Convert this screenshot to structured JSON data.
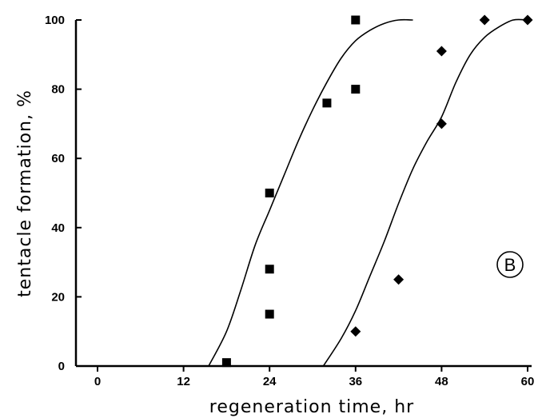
{
  "chart_data": {
    "type": "scatter",
    "xlabel": "regeneration time, hr",
    "ylabel": "tentacle formation, %",
    "xlim": [
      0,
      60
    ],
    "ylim": [
      0,
      100
    ],
    "x_ticks": [
      0,
      12,
      24,
      36,
      48,
      60
    ],
    "y_ticks": [
      0,
      20,
      40,
      60,
      80,
      100
    ],
    "x_tick_labels": [
      "0",
      "12",
      "24",
      "36",
      "48",
      "60"
    ],
    "y_tick_labels": [
      "0",
      "20",
      "40",
      "60",
      "80",
      "100"
    ],
    "panel_label": "B",
    "grid": false,
    "series": [
      {
        "marker": "square",
        "points": [
          {
            "x": 18,
            "y": 1
          },
          {
            "x": 24,
            "y": 50
          },
          {
            "x": 24,
            "y": 28
          },
          {
            "x": 24,
            "y": 15
          },
          {
            "x": 32,
            "y": 76
          },
          {
            "x": 36,
            "y": 100
          },
          {
            "x": 36,
            "y": 80
          }
        ],
        "fit_curve": [
          [
            15.5,
            0
          ],
          [
            18,
            10
          ],
          [
            20,
            22
          ],
          [
            22,
            35
          ],
          [
            24,
            45
          ],
          [
            26,
            55
          ],
          [
            28,
            65
          ],
          [
            30,
            74
          ],
          [
            32,
            82
          ],
          [
            34,
            89
          ],
          [
            36,
            94
          ],
          [
            38,
            97
          ],
          [
            40,
            99
          ],
          [
            42,
            100
          ],
          [
            44,
            100
          ]
        ]
      },
      {
        "marker": "diamond",
        "points": [
          {
            "x": 36,
            "y": 10
          },
          {
            "x": 42,
            "y": 25
          },
          {
            "x": 48,
            "y": 70
          },
          {
            "x": 48,
            "y": 91
          },
          {
            "x": 54,
            "y": 100
          },
          {
            "x": 60,
            "y": 100
          }
        ],
        "fit_curve": [
          [
            31.5,
            0
          ],
          [
            34,
            8
          ],
          [
            36,
            16
          ],
          [
            38,
            26
          ],
          [
            40,
            36
          ],
          [
            42,
            47
          ],
          [
            44,
            57
          ],
          [
            46,
            65
          ],
          [
            48,
            72
          ],
          [
            50,
            82
          ],
          [
            52,
            90
          ],
          [
            54,
            95
          ],
          [
            56,
            98
          ],
          [
            58,
            100
          ],
          [
            60,
            100
          ]
        ]
      }
    ]
  }
}
